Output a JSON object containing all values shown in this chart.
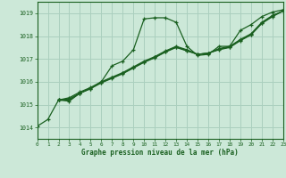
{
  "bg_color": "#cce8d8",
  "grid_color": "#aacfbe",
  "line_color": "#1a6020",
  "title": "Graphe pression niveau de la mer (hPa)",
  "xlim": [
    0,
    23
  ],
  "ylim": [
    1013.5,
    1019.5
  ],
  "yticks": [
    1014,
    1015,
    1016,
    1017,
    1018,
    1019
  ],
  "xticks": [
    0,
    1,
    2,
    3,
    4,
    5,
    6,
    7,
    8,
    9,
    10,
    11,
    12,
    13,
    14,
    15,
    16,
    17,
    18,
    19,
    20,
    21,
    22,
    23
  ],
  "series": [
    {
      "x": [
        0,
        1,
        2,
        3,
        4,
        5,
        6,
        7,
        8,
        9,
        10,
        11,
        12,
        13,
        14,
        15,
        16,
        17,
        18,
        19,
        20,
        21,
        22,
        23
      ],
      "y": [
        1014.05,
        1014.35,
        1015.2,
        1015.15,
        1015.5,
        1015.7,
        1016.0,
        1016.7,
        1016.9,
        1017.4,
        1018.75,
        1018.8,
        1018.8,
        1018.6,
        1017.55,
        1017.15,
        1017.2,
        1017.55,
        1017.55,
        1018.25,
        1018.5,
        1018.85,
        1019.05,
        1019.15
      ]
    },
    {
      "x": [
        2,
        3,
        4,
        5,
        6,
        7,
        8,
        9,
        10,
        11,
        12,
        13,
        14,
        15,
        16,
        17,
        18,
        19,
        20,
        21,
        22,
        23
      ],
      "y": [
        1015.2,
        1015.3,
        1015.55,
        1015.75,
        1016.0,
        1016.2,
        1016.4,
        1016.65,
        1016.9,
        1017.1,
        1017.35,
        1017.55,
        1017.4,
        1017.2,
        1017.25,
        1017.45,
        1017.55,
        1017.85,
        1018.1,
        1018.6,
        1018.9,
        1019.1
      ]
    },
    {
      "x": [
        2,
        3,
        4,
        5,
        6,
        7,
        8,
        9,
        10,
        11,
        12,
        13,
        14,
        15,
        16,
        17,
        18,
        19,
        20,
        21,
        22,
        23
      ],
      "y": [
        1015.2,
        1015.2,
        1015.5,
        1015.7,
        1015.95,
        1016.15,
        1016.35,
        1016.6,
        1016.85,
        1017.05,
        1017.3,
        1017.5,
        1017.35,
        1017.2,
        1017.25,
        1017.4,
        1017.5,
        1017.8,
        1018.05,
        1018.55,
        1018.85,
        1019.1
      ]
    },
    {
      "x": [
        2,
        3,
        4,
        5,
        6,
        7,
        8,
        9,
        10,
        11,
        12,
        13,
        14,
        15,
        16,
        17,
        18,
        19,
        20,
        21,
        22,
        23
      ],
      "y": [
        1015.2,
        1015.25,
        1015.5,
        1015.72,
        1015.97,
        1016.17,
        1016.37,
        1016.62,
        1016.87,
        1017.07,
        1017.32,
        1017.52,
        1017.37,
        1017.2,
        1017.25,
        1017.42,
        1017.52,
        1017.82,
        1018.07,
        1018.57,
        1018.87,
        1019.1
      ]
    }
  ]
}
